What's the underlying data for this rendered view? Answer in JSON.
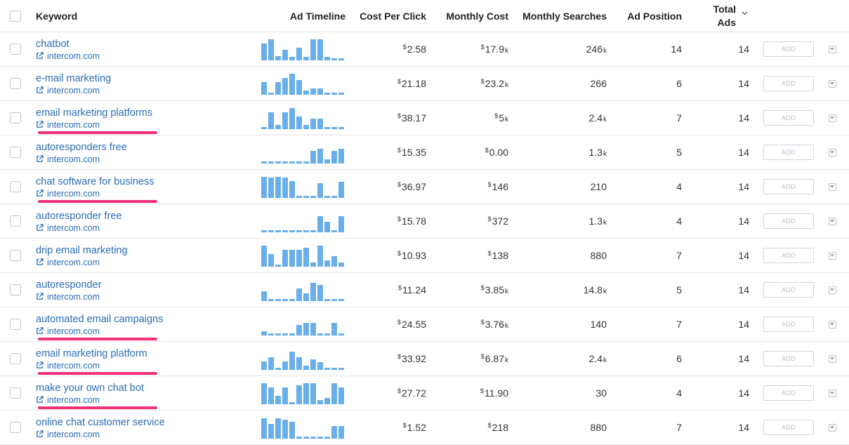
{
  "headers": {
    "keyword": "Keyword",
    "ad_timeline": "Ad Timeline",
    "cost_per_click": "Cost Per Click",
    "monthly_cost": "Monthly Cost",
    "monthly_searches": "Monthly Searches",
    "ad_position": "Ad Position",
    "total_ads_line1": "Total",
    "total_ads_line2": "Ads"
  },
  "add_label": "ADD",
  "colors": {
    "link": "#2a6db5",
    "bar": "#6aaeea",
    "highlight": "#f0307a"
  },
  "rows": [
    {
      "keyword": "chatbot",
      "domain": "intercom.com",
      "cpc": "2.58",
      "mc": "17.9",
      "mc_unit": "k",
      "ms": "246",
      "ms_unit": "k",
      "pos": "14",
      "total": "14",
      "highlight": false,
      "timeline": [
        0.8,
        1,
        0.2,
        0.5,
        0.15,
        0.6,
        0.15,
        1,
        1,
        0.15,
        0.1,
        0.1
      ]
    },
    {
      "keyword": "e-mail marketing",
      "domain": "intercom.com",
      "cpc": "21.18",
      "mc": "23.2",
      "mc_unit": "k",
      "ms": "266",
      "ms_unit": "",
      "pos": "6",
      "total": "14",
      "highlight": false,
      "timeline": [
        0.6,
        0.1,
        0.6,
        0.8,
        1,
        0.7,
        0.2,
        0.3,
        0.3,
        0.1,
        0.1,
        0.1
      ]
    },
    {
      "keyword": "email marketing platforms",
      "domain": "intercom.com",
      "cpc": "38.17",
      "mc": "5",
      "mc_unit": "k",
      "ms": "2.4",
      "ms_unit": "k",
      "pos": "7",
      "total": "14",
      "highlight": true,
      "timeline": [
        0.1,
        0.8,
        0.2,
        0.8,
        1,
        0.6,
        0.2,
        0.5,
        0.5,
        0.1,
        0.1,
        0.1
      ]
    },
    {
      "keyword": "autoresponders free",
      "domain": "intercom.com",
      "cpc": "15.35",
      "mc": "0.00",
      "mc_unit": "",
      "ms": "1.3",
      "ms_unit": "k",
      "pos": "5",
      "total": "14",
      "highlight": false,
      "timeline": [
        0.1,
        0.1,
        0.1,
        0.1,
        0.1,
        0.1,
        0.1,
        0.6,
        0.7,
        0.2,
        0.6,
        0.7
      ]
    },
    {
      "keyword": "chat software for business",
      "domain": "intercom.com",
      "cpc": "36.97",
      "mc": "146",
      "mc_unit": "",
      "ms": "210",
      "ms_unit": "",
      "pos": "4",
      "total": "14",
      "highlight": true,
      "timeline": [
        1,
        0.95,
        1,
        0.95,
        0.8,
        0.1,
        0.1,
        0.1,
        0.7,
        0.1,
        0.1,
        0.75
      ]
    },
    {
      "keyword": "autoresponder free",
      "domain": "intercom.com",
      "cpc": "15.78",
      "mc": "372",
      "mc_unit": "",
      "ms": "1.3",
      "ms_unit": "k",
      "pos": "4",
      "total": "14",
      "highlight": false,
      "timeline": [
        0.1,
        0.1,
        0.1,
        0.1,
        0.1,
        0.1,
        0.1,
        0.1,
        0.75,
        0.5,
        0.1,
        0.75
      ]
    },
    {
      "keyword": "drip email marketing",
      "domain": "intercom.com",
      "cpc": "10.93",
      "mc": "138",
      "mc_unit": "",
      "ms": "880",
      "ms_unit": "",
      "pos": "7",
      "total": "14",
      "highlight": false,
      "timeline": [
        1,
        0.6,
        0.1,
        0.8,
        0.8,
        0.8,
        0.9,
        0.2,
        1,
        0.3,
        0.5,
        0.2
      ]
    },
    {
      "keyword": "autoresponder",
      "domain": "intercom.com",
      "cpc": "11.24",
      "mc": "3.85",
      "mc_unit": "k",
      "ms": "14.8",
      "ms_unit": "k",
      "pos": "5",
      "total": "14",
      "highlight": false,
      "timeline": [
        0.45,
        0.1,
        0.1,
        0.1,
        0.1,
        0.6,
        0.35,
        0.85,
        0.75,
        0.1,
        0.1,
        0.1
      ]
    },
    {
      "keyword": "automated email campaigns",
      "domain": "intercom.com",
      "cpc": "24.55",
      "mc": "3.76",
      "mc_unit": "k",
      "ms": "140",
      "ms_unit": "",
      "pos": "7",
      "total": "14",
      "highlight": true,
      "timeline": [
        0.2,
        0.1,
        0.1,
        0.1,
        0.1,
        0.5,
        0.6,
        0.6,
        0.1,
        0.1,
        0.6,
        0.1
      ]
    },
    {
      "keyword": "email marketing platform",
      "domain": "intercom.com",
      "cpc": "33.92",
      "mc": "6.87",
      "mc_unit": "k",
      "ms": "2.4",
      "ms_unit": "k",
      "pos": "6",
      "total": "14",
      "highlight": true,
      "timeline": [
        0.4,
        0.6,
        0.1,
        0.4,
        0.85,
        0.6,
        0.2,
        0.5,
        0.35,
        0.1,
        0.1,
        0.1
      ]
    },
    {
      "keyword": "make your own chat bot",
      "domain": "intercom.com",
      "cpc": "27.72",
      "mc": "11.90",
      "mc_unit": "",
      "ms": "30",
      "ms_unit": "",
      "pos": "4",
      "total": "14",
      "highlight": true,
      "timeline": [
        1,
        0.8,
        0.4,
        0.8,
        0.1,
        0.9,
        1,
        1,
        0.2,
        0.3,
        1,
        0.8
      ]
    },
    {
      "keyword": "online chat customer service",
      "domain": "intercom.com",
      "cpc": "1.52",
      "mc": "218",
      "mc_unit": "",
      "ms": "880",
      "ms_unit": "",
      "pos": "7",
      "total": "14",
      "highlight": false,
      "timeline": [
        0.95,
        0.7,
        0.95,
        0.9,
        0.8,
        0.1,
        0.1,
        0.1,
        0.1,
        0.1,
        0.6,
        0.6
      ]
    }
  ]
}
